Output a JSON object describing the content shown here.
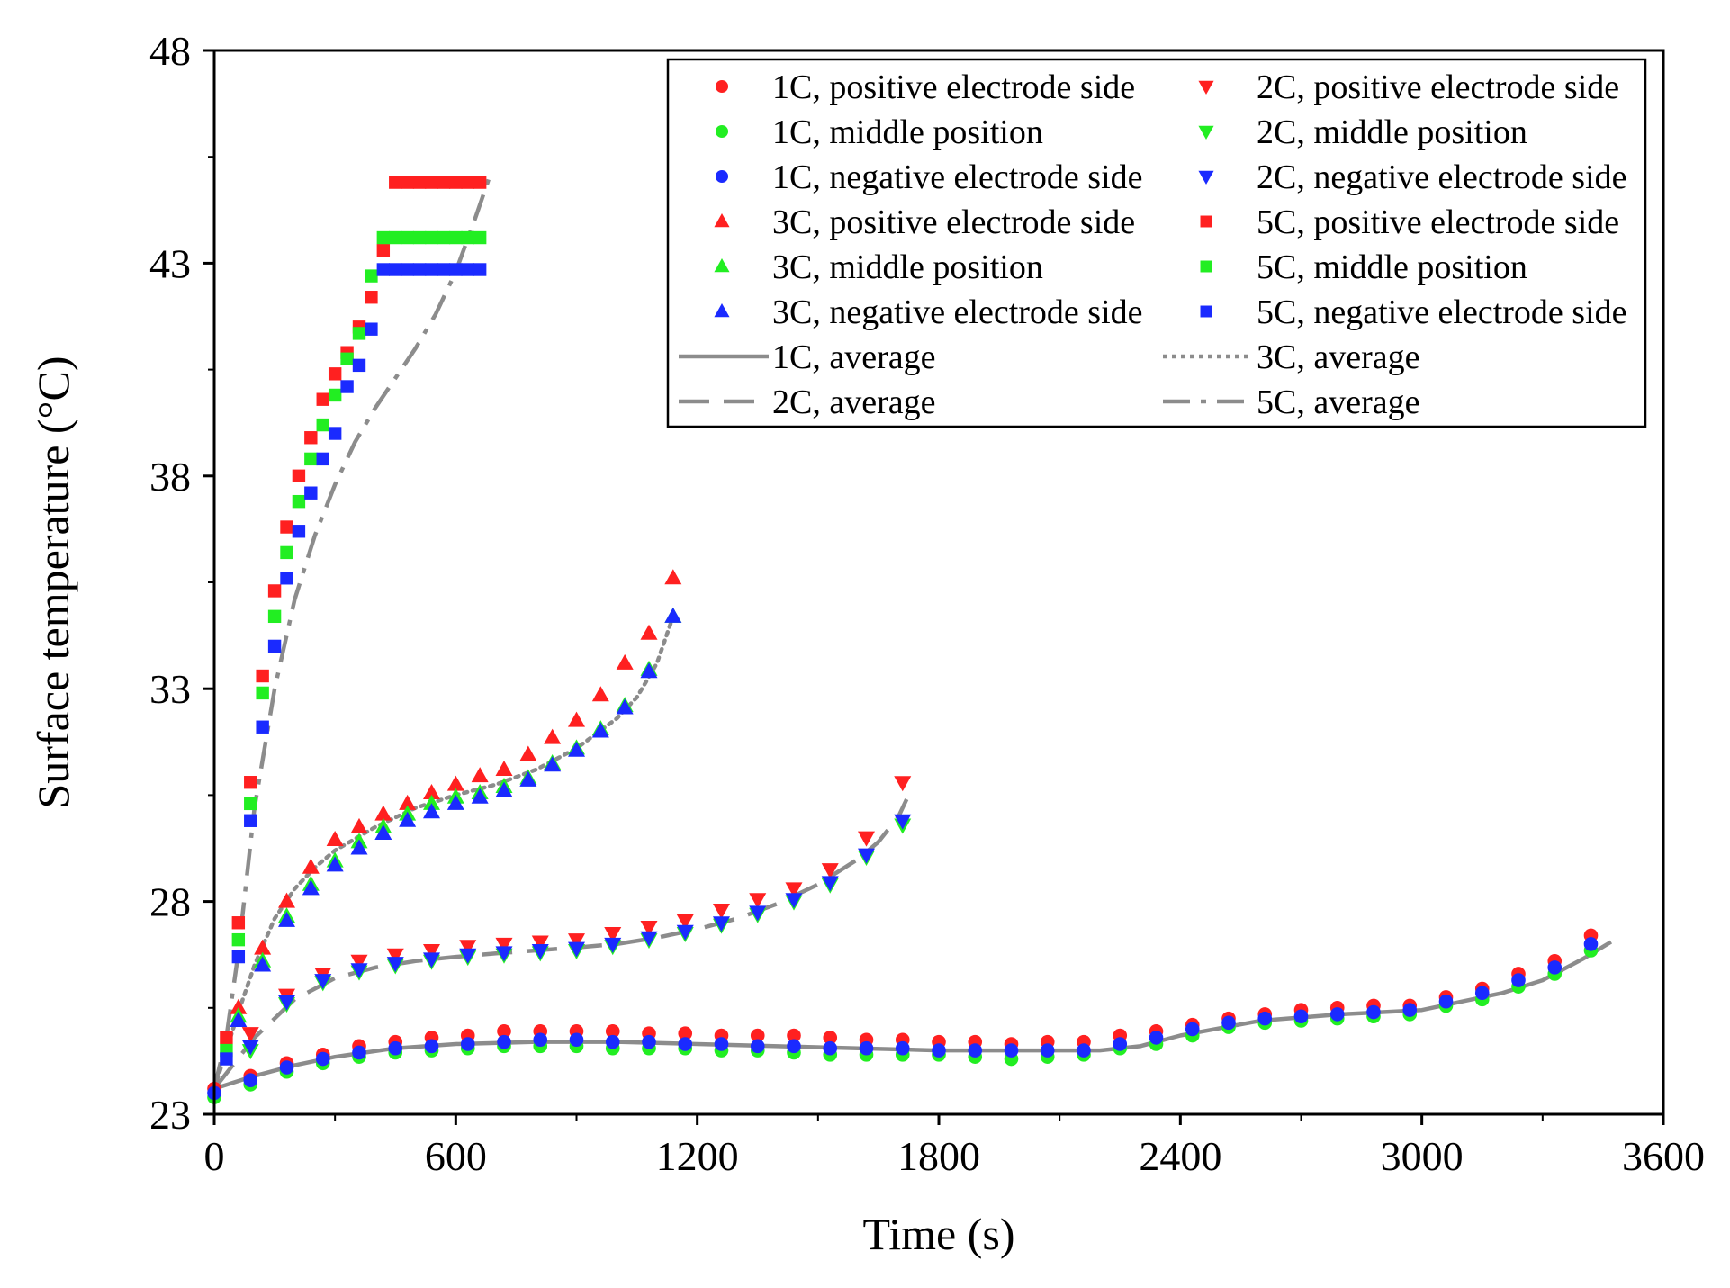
{
  "chart_data": {
    "type": "scatter",
    "title": "",
    "xlabel": "Time (s)",
    "ylabel": "Surface temperature (°C)",
    "xlim": [
      0,
      3600
    ],
    "ylim": [
      23,
      48
    ],
    "xticks": [
      0,
      600,
      1200,
      1800,
      2400,
      3000,
      3600
    ],
    "yticks": [
      23,
      28,
      33,
      38,
      43,
      48
    ],
    "xtick_labels": [
      "0",
      "600",
      "1200",
      "1800",
      "2400",
      "3000",
      "3600"
    ],
    "ytick_labels": [
      "23",
      "28",
      "33",
      "38",
      "43",
      "48"
    ],
    "grid": false,
    "legend_position": "top-right",
    "colors": {
      "positive": "#ff2020",
      "middle": "#22ee22",
      "negative": "#1a2aff",
      "average": "#8c8c8c"
    },
    "series": [
      {
        "name": "1C, positive electrode side",
        "marker": "circle",
        "color": "#ff2020",
        "x": [
          0,
          90,
          180,
          270,
          360,
          450,
          540,
          630,
          720,
          810,
          900,
          990,
          1080,
          1170,
          1260,
          1350,
          1440,
          1530,
          1620,
          1710,
          1800,
          1890,
          1980,
          2070,
          2160,
          2250,
          2340,
          2430,
          2520,
          2610,
          2700,
          2790,
          2880,
          2970,
          3060,
          3150,
          3240,
          3330,
          3420
        ],
        "y": [
          23.6,
          23.9,
          24.2,
          24.4,
          24.6,
          24.7,
          24.8,
          24.85,
          24.95,
          24.95,
          24.95,
          24.95,
          24.9,
          24.9,
          24.85,
          24.85,
          24.85,
          24.8,
          24.75,
          24.75,
          24.7,
          24.7,
          24.65,
          24.7,
          24.7,
          24.85,
          24.95,
          25.1,
          25.25,
          25.35,
          25.45,
          25.5,
          25.55,
          25.55,
          25.75,
          25.95,
          26.3,
          26.6,
          27.2
        ]
      },
      {
        "name": "1C, middle position",
        "marker": "circle",
        "color": "#22ee22",
        "x": [
          0,
          90,
          180,
          270,
          360,
          450,
          540,
          630,
          720,
          810,
          900,
          990,
          1080,
          1170,
          1260,
          1350,
          1440,
          1530,
          1620,
          1710,
          1800,
          1890,
          1980,
          2070,
          2160,
          2250,
          2340,
          2430,
          2520,
          2610,
          2700,
          2790,
          2880,
          2970,
          3060,
          3150,
          3240,
          3330,
          3420
        ],
        "y": [
          23.4,
          23.7,
          24.0,
          24.2,
          24.35,
          24.45,
          24.5,
          24.55,
          24.6,
          24.6,
          24.6,
          24.55,
          24.55,
          24.55,
          24.5,
          24.5,
          24.45,
          24.4,
          24.4,
          24.4,
          24.4,
          24.35,
          24.3,
          24.35,
          24.4,
          24.55,
          24.65,
          24.85,
          25.05,
          25.15,
          25.2,
          25.25,
          25.3,
          25.35,
          25.55,
          25.7,
          26.0,
          26.3,
          26.85
        ]
      },
      {
        "name": "1C, negative electrode side",
        "marker": "circle",
        "color": "#1a2aff",
        "x": [
          0,
          90,
          180,
          270,
          360,
          450,
          540,
          630,
          720,
          810,
          900,
          990,
          1080,
          1170,
          1260,
          1350,
          1440,
          1530,
          1620,
          1710,
          1800,
          1890,
          1980,
          2070,
          2160,
          2250,
          2340,
          2430,
          2520,
          2610,
          2700,
          2790,
          2880,
          2970,
          3060,
          3150,
          3240,
          3330,
          3420
        ],
        "y": [
          23.5,
          23.8,
          24.1,
          24.3,
          24.45,
          24.55,
          24.6,
          24.65,
          24.7,
          24.75,
          24.75,
          24.7,
          24.7,
          24.65,
          24.65,
          24.6,
          24.6,
          24.55,
          24.55,
          24.55,
          24.5,
          24.5,
          24.5,
          24.5,
          24.5,
          24.65,
          24.8,
          25.0,
          25.15,
          25.25,
          25.3,
          25.35,
          25.4,
          25.45,
          25.65,
          25.85,
          26.15,
          26.45,
          27.0
        ]
      },
      {
        "name": "2C, positive electrode side",
        "marker": "triangle-down",
        "color": "#ff2020",
        "x": [
          90,
          180,
          270,
          360,
          450,
          540,
          630,
          720,
          810,
          900,
          990,
          1080,
          1170,
          1260,
          1350,
          1440,
          1530,
          1620,
          1710
        ],
        "y": [
          24.9,
          25.8,
          26.3,
          26.6,
          26.75,
          26.85,
          26.95,
          27.0,
          27.05,
          27.1,
          27.25,
          27.4,
          27.55,
          27.8,
          28.05,
          28.3,
          28.75,
          29.5,
          30.8
        ]
      },
      {
        "name": "2C, middle position",
        "marker": "triangle-down",
        "color": "#22ee22",
        "x": [
          90,
          180,
          270,
          360,
          450,
          540,
          630,
          720,
          810,
          900,
          990,
          1080,
          1170,
          1260,
          1350,
          1440,
          1530,
          1620,
          1710
        ],
        "y": [
          24.5,
          25.6,
          26.1,
          26.35,
          26.5,
          26.6,
          26.7,
          26.75,
          26.8,
          26.85,
          26.95,
          27.1,
          27.25,
          27.45,
          27.7,
          28.0,
          28.4,
          29.05,
          29.8
        ]
      },
      {
        "name": "2C, negative electrode side",
        "marker": "triangle-down",
        "color": "#1a2aff",
        "x": [
          90,
          180,
          270,
          360,
          450,
          540,
          630,
          720,
          810,
          900,
          990,
          1080,
          1170,
          1260,
          1350,
          1440,
          1530,
          1620,
          1710
        ],
        "y": [
          24.6,
          25.65,
          26.15,
          26.4,
          26.55,
          26.65,
          26.75,
          26.8,
          26.85,
          26.9,
          27.0,
          27.15,
          27.3,
          27.5,
          27.75,
          28.05,
          28.45,
          29.1,
          29.9
        ]
      },
      {
        "name": "3C, positive electrode side",
        "marker": "triangle-up",
        "color": "#ff2020",
        "x": [
          60,
          120,
          180,
          240,
          300,
          360,
          420,
          480,
          540,
          600,
          660,
          720,
          780,
          840,
          900,
          960,
          1020,
          1080,
          1140
        ],
        "y": [
          25.5,
          26.9,
          28.0,
          28.8,
          29.45,
          29.75,
          30.05,
          30.3,
          30.55,
          30.75,
          30.95,
          31.1,
          31.45,
          31.85,
          32.25,
          32.85,
          33.6,
          34.3,
          35.6
        ]
      },
      {
        "name": "3C, middle position",
        "marker": "triangle-up",
        "color": "#22ee22",
        "x": [
          60,
          120,
          180,
          240,
          300,
          360,
          420,
          480,
          540,
          600,
          660,
          720,
          780,
          840,
          900,
          960,
          1020,
          1080,
          1140
        ],
        "y": [
          25.3,
          26.6,
          27.65,
          28.4,
          28.95,
          29.4,
          29.75,
          30.05,
          30.3,
          30.45,
          30.55,
          30.7,
          30.9,
          31.25,
          31.6,
          32.05,
          32.6,
          33.45,
          34.7
        ]
      },
      {
        "name": "3C, negative electrode side",
        "marker": "triangle-up",
        "color": "#1a2aff",
        "x": [
          60,
          120,
          180,
          240,
          300,
          360,
          420,
          480,
          540,
          600,
          660,
          720,
          780,
          840,
          900,
          960,
          1020,
          1080,
          1140
        ],
        "y": [
          25.2,
          26.5,
          27.55,
          28.3,
          28.85,
          29.25,
          29.6,
          29.9,
          30.1,
          30.3,
          30.45,
          30.6,
          30.85,
          31.2,
          31.55,
          32.0,
          32.55,
          33.4,
          34.7
        ]
      },
      {
        "name": "5C, positive electrode side",
        "marker": "square",
        "color": "#ff2020",
        "x": [
          30,
          60,
          90,
          120,
          150,
          180,
          210,
          240,
          270,
          300,
          330,
          360,
          390,
          420,
          450,
          480,
          510,
          540,
          570,
          600,
          630,
          660
        ],
        "y": [
          24.8,
          27.5,
          30.8,
          33.3,
          35.3,
          36.8,
          38.0,
          38.9,
          39.8,
          40.4,
          40.9,
          41.5,
          42.2,
          43.3,
          44.9,
          44.9,
          44.9,
          44.9,
          44.9,
          44.9,
          44.9,
          44.9
        ]
      },
      {
        "name": "5C, middle position",
        "marker": "square",
        "color": "#22ee22",
        "x": [
          30,
          60,
          90,
          120,
          150,
          180,
          210,
          240,
          270,
          300,
          330,
          360,
          390,
          420,
          450,
          480,
          510,
          540,
          570,
          600,
          630,
          660
        ],
        "y": [
          24.5,
          27.1,
          30.3,
          32.9,
          34.7,
          36.2,
          37.4,
          38.4,
          39.2,
          39.9,
          40.75,
          41.35,
          42.7,
          43.6,
          43.6,
          43.6,
          43.6,
          43.6,
          43.6,
          43.6,
          43.6,
          43.6
        ]
      },
      {
        "name": "5C, negative electrode side",
        "marker": "square",
        "color": "#1a2aff",
        "x": [
          30,
          60,
          90,
          120,
          150,
          180,
          210,
          240,
          270,
          300,
          330,
          360,
          390,
          420,
          450,
          480,
          510,
          540,
          570,
          600,
          630,
          660
        ],
        "y": [
          24.3,
          26.7,
          29.9,
          32.1,
          34.0,
          35.6,
          36.7,
          37.6,
          38.4,
          39.0,
          40.1,
          40.6,
          41.45,
          42.85,
          42.85,
          42.85,
          42.85,
          42.85,
          42.85,
          42.85,
          42.85,
          42.85
        ]
      },
      {
        "name": "1C, average",
        "line_style": "solid",
        "color": "#8c8c8c",
        "x": [
          0,
          100,
          200,
          300,
          450,
          600,
          800,
          1000,
          1200,
          1400,
          1600,
          1800,
          2000,
          2200,
          2300,
          2400,
          2600,
          2800,
          3000,
          3100,
          3200,
          3300,
          3400,
          3470
        ],
        "y": [
          23.6,
          23.9,
          24.15,
          24.35,
          24.55,
          24.65,
          24.7,
          24.7,
          24.65,
          24.6,
          24.55,
          24.5,
          24.5,
          24.5,
          24.6,
          24.85,
          25.2,
          25.35,
          25.45,
          25.65,
          25.85,
          26.15,
          26.65,
          27.05
        ]
      },
      {
        "name": "2C, average",
        "line_style": "dashed",
        "color": "#8c8c8c",
        "x": [
          0,
          100,
          200,
          300,
          400,
          500,
          600,
          700,
          800,
          900,
          1000,
          1100,
          1200,
          1300,
          1400,
          1500,
          1600,
          1650,
          1700,
          1720
        ],
        "y": [
          23.6,
          24.8,
          25.7,
          26.2,
          26.45,
          26.6,
          26.7,
          26.78,
          26.85,
          26.92,
          27.0,
          27.15,
          27.35,
          27.6,
          27.95,
          28.4,
          29.0,
          29.4,
          30.0,
          30.4
        ]
      },
      {
        "name": "3C, average",
        "line_style": "dotted",
        "color": "#8c8c8c",
        "x": [
          0,
          30,
          60,
          100,
          150,
          200,
          250,
          300,
          400,
          500,
          600,
          700,
          800,
          900,
          1000,
          1050,
          1100,
          1140
        ],
        "y": [
          23.6,
          24.5,
          25.4,
          26.5,
          27.6,
          28.3,
          28.8,
          29.2,
          29.75,
          30.2,
          30.5,
          30.75,
          31.1,
          31.6,
          32.3,
          32.8,
          33.6,
          34.7
        ]
      },
      {
        "name": "5C, average",
        "line_style": "dashdot",
        "color": "#8c8c8c",
        "x": [
          0,
          30,
          60,
          100,
          150,
          200,
          250,
          300,
          350,
          400,
          450,
          500,
          550,
          600,
          650,
          690
        ],
        "y": [
          23.6,
          24.8,
          26.8,
          30.2,
          33.0,
          35.1,
          36.6,
          37.8,
          38.8,
          39.6,
          40.3,
          41.0,
          41.8,
          42.8,
          44.1,
          45.2
        ]
      }
    ],
    "legend": {
      "rows": [
        [
          "1C, positive electrode side",
          "2C, positive electrode side"
        ],
        [
          "1C, middle position",
          "2C, middle position"
        ],
        [
          "1C, negative electrode side",
          "2C, negative electrode side"
        ],
        [
          "3C, positive electrode side",
          "5C, positive electrode side"
        ],
        [
          "3C, middle position",
          "5C, middle position"
        ],
        [
          "3C, negative electrode side",
          "5C, negative electrode side"
        ],
        [
          "1C, average",
          "3C, average"
        ],
        [
          "2C, average",
          "5C, average"
        ]
      ]
    }
  }
}
